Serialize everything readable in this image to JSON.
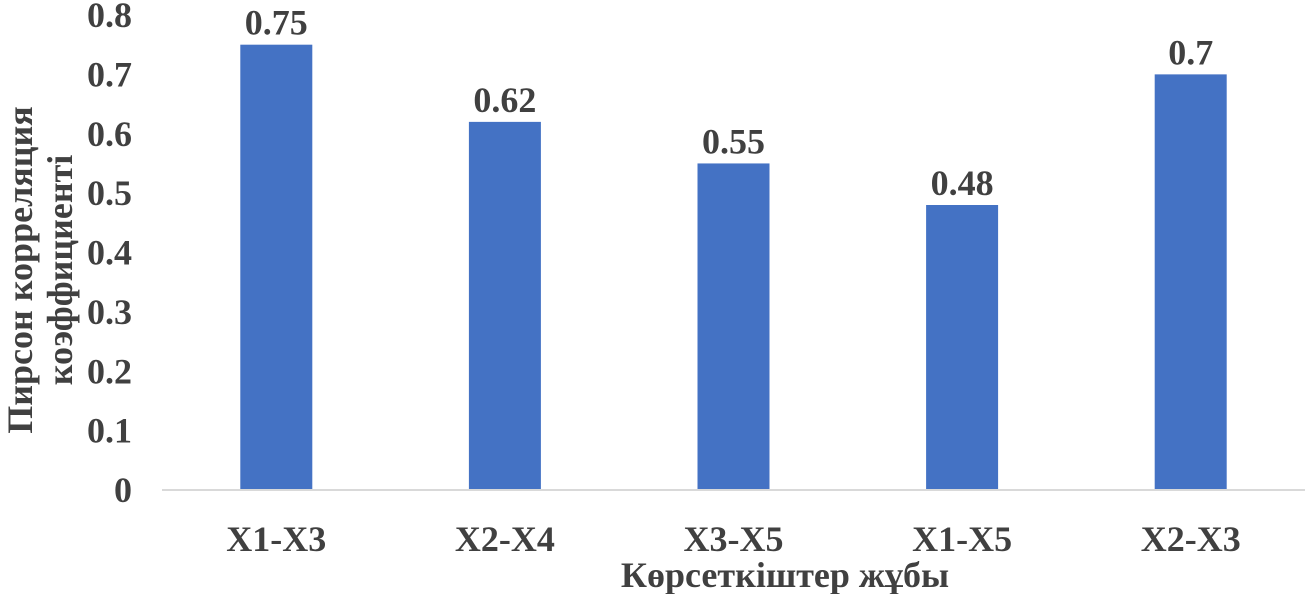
{
  "chart_data": {
    "type": "bar",
    "title": "",
    "xlabel": "Көрсеткіштер жұбы",
    "ylabel_lines": [
      "Пирсон корреляция",
      "коэффициенті"
    ],
    "categories": [
      "X1-X3",
      "X2-X4",
      "X3-X5",
      "X1-X5",
      "X2-X3"
    ],
    "series": [
      {
        "values": [
          0.75,
          0.62,
          0.55,
          0.48,
          0.7
        ]
      }
    ],
    "data_labels": [
      "0.75",
      "0.62",
      "0.55",
      "0.48",
      "0.7"
    ],
    "ylim": [
      0,
      0.8
    ],
    "yticks": [
      "0",
      "0.1",
      "0.2",
      "0.3",
      "0.4",
      "0.5",
      "0.6",
      "0.7",
      "0.8"
    ],
    "grid": false,
    "legend": "none",
    "colors": {
      "bar": "#4472C4",
      "text": "#404040",
      "axis": "#D9D9D9"
    }
  }
}
